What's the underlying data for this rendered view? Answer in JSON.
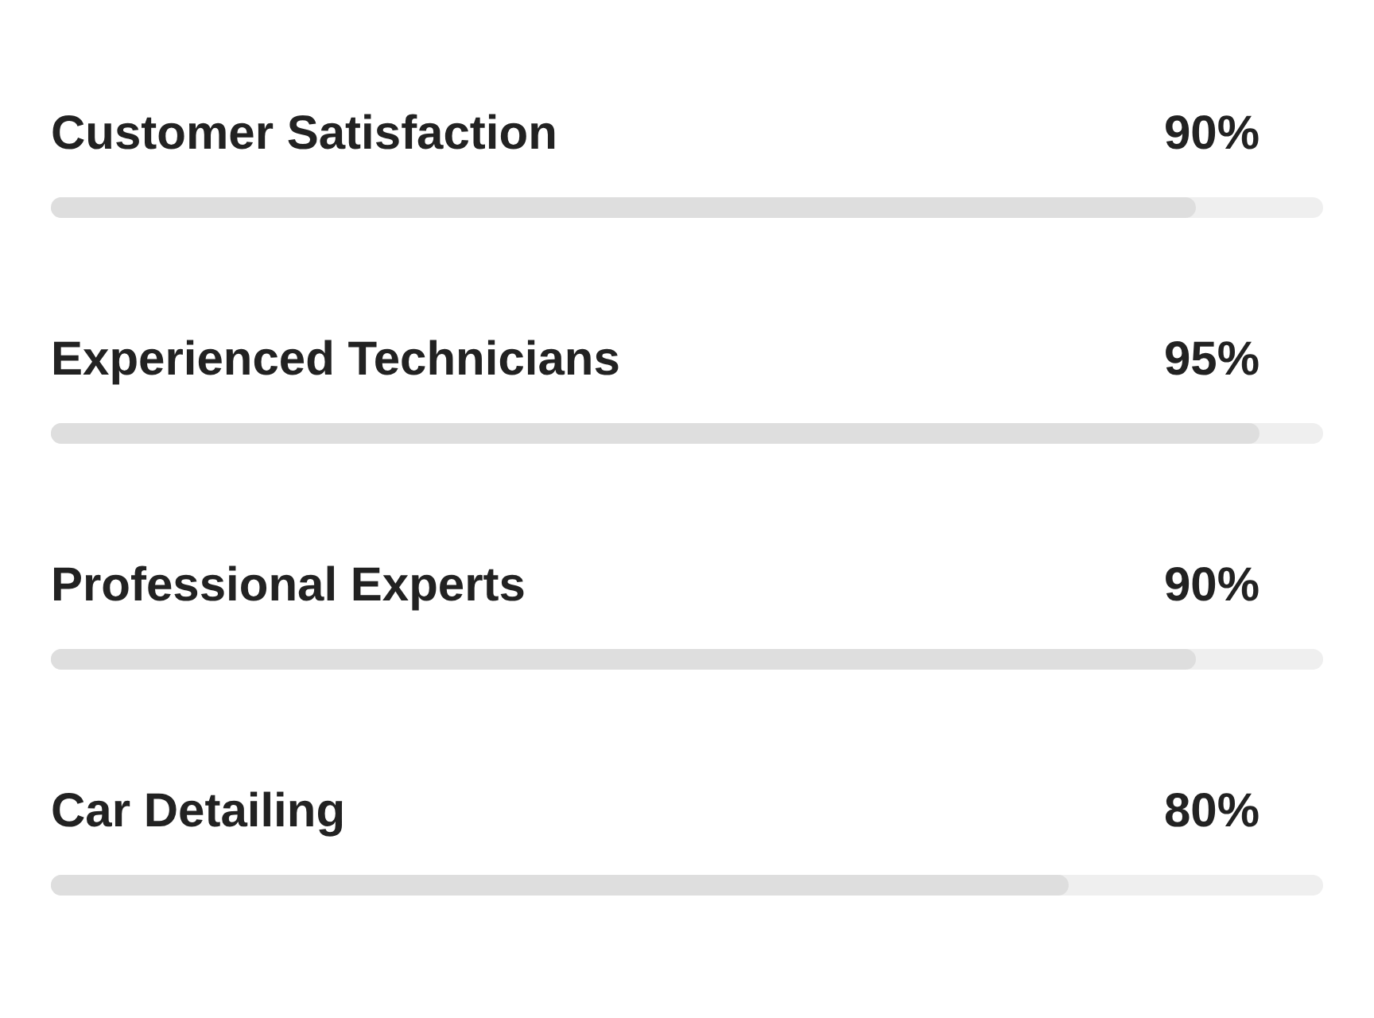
{
  "chart_data": {
    "type": "bar",
    "orientation": "horizontal",
    "categories": [
      "Customer Satisfaction",
      "Experienced Technicians",
      "Professional Experts",
      "Car Detailing"
    ],
    "values": [
      90,
      95,
      90,
      80
    ],
    "value_labels": [
      "90%",
      "95%",
      "90%",
      "80%"
    ],
    "color": "#dedede",
    "tick_labels": "y"
  }
}
